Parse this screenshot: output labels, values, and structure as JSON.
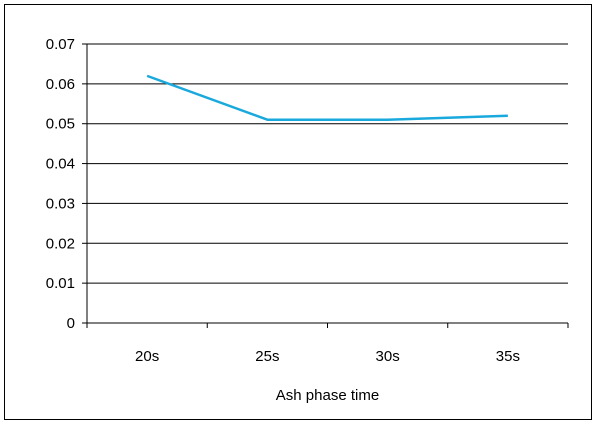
{
  "chart_data": {
    "type": "line",
    "title": "",
    "xlabel": "Ash phase time",
    "ylabel": "",
    "categories": [
      "20s",
      "25s",
      "30s",
      "35s"
    ],
    "series": [
      {
        "values": [
          0.062,
          0.051,
          0.051,
          0.052
        ],
        "color": "#1aa9dc"
      }
    ],
    "ylim": [
      0,
      0.07
    ],
    "yticks": [
      "0",
      "0.01",
      "0.02",
      "0.03",
      "0.04",
      "0.05",
      "0.06",
      "0.07"
    ],
    "grid": true,
    "legend": "none"
  }
}
